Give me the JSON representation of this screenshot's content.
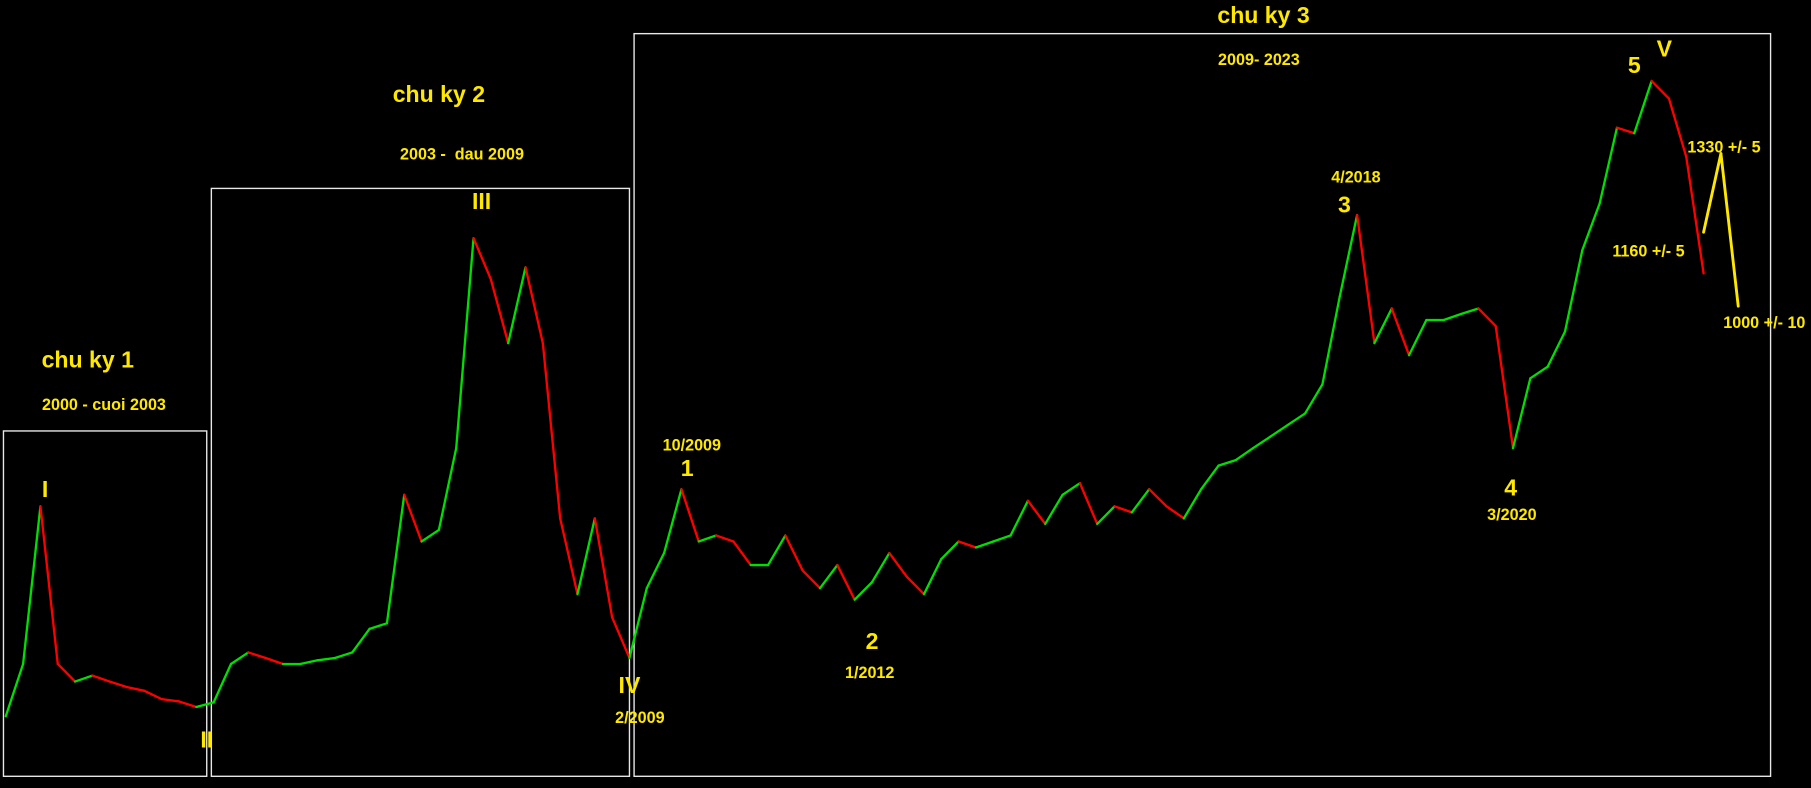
{
  "chart_data": {
    "type": "line",
    "series": [
      {
        "color": "#00e000",
        "down_color": "#ff0000",
        "values": [
          113,
          226,
          567,
          226,
          188,
          201,
          188,
          176,
          168,
          150,
          145,
          133,
          143,
          226,
          251,
          239,
          226,
          226,
          234,
          239,
          251,
          302,
          314,
          592,
          491,
          516,
          693,
          1147,
          1058,
          920,
          1084,
          920,
          541,
          377,
          541,
          327,
          239,
          390,
          466,
          604,
          491,
          504,
          491,
          440,
          440,
          504,
          428,
          390,
          440,
          365,
          403,
          466,
          415,
          377,
          453,
          491,
          478,
          491,
          504,
          579,
          529,
          592,
          617,
          529,
          567,
          554,
          604,
          567,
          541,
          604,
          655,
          667,
          693,
          718,
          743,
          768,
          831,
          1021,
          1197,
          920,
          995,
          894,
          970,
          970,
          983,
          995,
          957,
          693,
          844,
          869,
          945,
          1121,
          1222,
          1386,
          1374,
          1487,
          1449,
          1323,
          1071,
          null,
          null
        ]
      },
      {
        "color": "#ffe800",
        "values": [
          null,
          null,
          null,
          null,
          null,
          null,
          null,
          null,
          null,
          null,
          null,
          null,
          null,
          null,
          null,
          null,
          null,
          null,
          null,
          null,
          null,
          null,
          null,
          null,
          null,
          null,
          null,
          null,
          null,
          null,
          null,
          null,
          null,
          null,
          null,
          null,
          null,
          null,
          null,
          null,
          null,
          null,
          null,
          null,
          null,
          null,
          null,
          null,
          null,
          null,
          null,
          null,
          null,
          null,
          null,
          null,
          null,
          null,
          null,
          null,
          null,
          null,
          null,
          null,
          null,
          null,
          null,
          null,
          null,
          null,
          null,
          null,
          null,
          null,
          null,
          null,
          null,
          null,
          null,
          null,
          null,
          null,
          null,
          null,
          null,
          null,
          null,
          null,
          null,
          null,
          null,
          null,
          null,
          null,
          null,
          null,
          null,
          null,
          1160,
          1330,
          1000
        ]
      }
    ],
    "annotations": [
      "chu ky 1",
      "2000 - cuoi 2003",
      "I",
      "II",
      "chu ky 2",
      "2003 -  dau 2009",
      "III",
      "IV",
      "2/2009",
      "chu ky 3",
      "2009- 2023",
      "10/2009",
      "1",
      "2",
      "1/2012",
      "4/2018",
      "3",
      "4",
      "3/2020",
      "5",
      "V",
      "1330 +/- 5",
      "1160 +/- 5",
      "1000 +/- 10"
    ]
  }
}
